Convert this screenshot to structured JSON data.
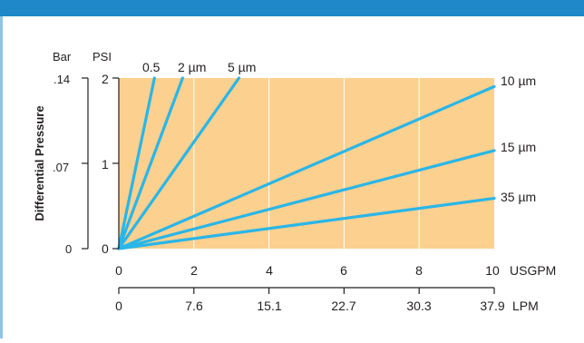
{
  "chart_data": {
    "type": "line",
    "ylabel": "Differential Pressure",
    "x_unit": "USGPM",
    "x2_unit": "LPM",
    "y_unit": "PSI",
    "y2_unit": "Bar",
    "xlim": [
      0,
      10
    ],
    "ylim": [
      0,
      2
    ],
    "x_ticks": [
      "0",
      "2",
      "4",
      "6",
      "8",
      "10"
    ],
    "x2_ticks": [
      "0",
      "7.6",
      "15.1",
      "22.7",
      "30.3",
      "37.9"
    ],
    "y_ticks": [
      "0",
      "1",
      "2"
    ],
    "y2_ticks": [
      "0",
      ".07",
      ".14"
    ],
    "grid": true,
    "colors": {
      "plot_bg": "#fcd08f",
      "line": "#29b6e8",
      "header": "#1e88c8",
      "axis": "#231f20",
      "grid": "#ffffff"
    },
    "series": [
      {
        "name": "0.5",
        "x": [
          0,
          0.95
        ],
        "y": [
          0,
          2
        ]
      },
      {
        "name": "2 µm",
        "x": [
          0,
          1.7
        ],
        "y": [
          0,
          2
        ]
      },
      {
        "name": "5 µm",
        "x": [
          0,
          3.2
        ],
        "y": [
          0,
          2
        ]
      },
      {
        "name": "10 µm",
        "x": [
          0,
          10
        ],
        "y": [
          0,
          1.9
        ]
      },
      {
        "name": "15 µm",
        "x": [
          0,
          10
        ],
        "y": [
          0,
          1.15
        ]
      },
      {
        "name": "35 µm",
        "x": [
          0,
          10
        ],
        "y": [
          0,
          0.59
        ]
      }
    ]
  }
}
